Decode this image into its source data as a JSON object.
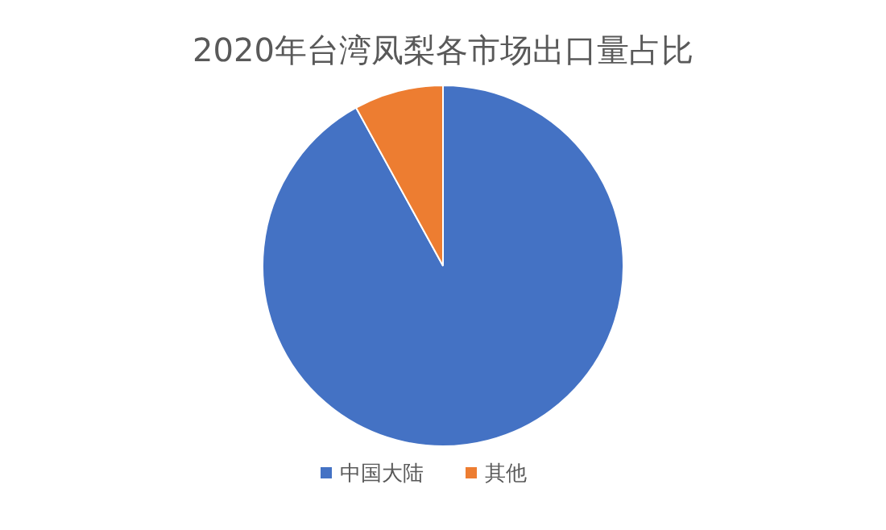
{
  "chart_data": {
    "type": "pie",
    "title": "2020年台湾凤梨各市场出口量占比",
    "categories": [
      "中国大陆",
      "其他"
    ],
    "values": [
      92,
      8
    ],
    "colors": [
      "#4472c4",
      "#ed7d31"
    ],
    "legend": "bottom"
  }
}
